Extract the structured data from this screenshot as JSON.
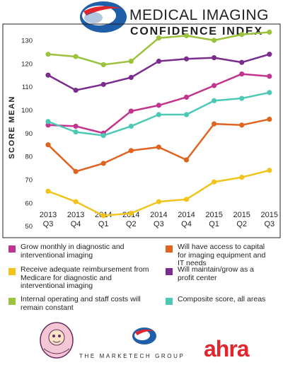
{
  "header": {
    "title_line1": "MEDICAL IMAGING",
    "title_line2": "CONFIDENCE INDEX"
  },
  "chart_data": {
    "type": "line",
    "ylabel": "SCORE MEAN",
    "xlabel": "",
    "ylim": [
      45,
      137
    ],
    "yticks": [
      50,
      60,
      70,
      80,
      90,
      100,
      110,
      120,
      130
    ],
    "grid": false,
    "categories": [
      {
        "year": "2013",
        "quarter": "Q3"
      },
      {
        "year": "2013",
        "quarter": "Q4"
      },
      {
        "year": "2014",
        "quarter": "Q1"
      },
      {
        "year": "2014",
        "quarter": "Q2"
      },
      {
        "year": "2014",
        "quarter": "Q3"
      },
      {
        "year": "2014",
        "quarter": "Q4"
      },
      {
        "year": "2015",
        "quarter": "Q1"
      },
      {
        "year": "2015",
        "quarter": "Q2"
      },
      {
        "year": "2015",
        "quarter": "Q3"
      }
    ],
    "series": [
      {
        "name": "Internal operating and staff costs will remain constant",
        "color": "#9bc23c",
        "values": [
          124,
          123,
          119.5,
          121,
          131,
          132,
          130,
          132.5,
          133.5
        ]
      },
      {
        "name": "Will maintain/grow as a profit center",
        "color": "#7b2d8e",
        "values": [
          115,
          108.5,
          111,
          114,
          121,
          122,
          122.5,
          120.5,
          124
        ]
      },
      {
        "name": "Grow monthly in diagnostic and interventional imaging",
        "color": "#c2358f",
        "values": [
          93.5,
          93,
          90,
          99.5,
          102,
          105.5,
          110.5,
          115.5,
          114.5
        ]
      },
      {
        "name": "Composite score, all areas",
        "color": "#4dc8b4",
        "values": [
          95,
          90.5,
          89,
          93,
          98,
          98,
          104,
          105,
          107.5
        ]
      },
      {
        "name": "Will have access to capital for imaging equipment and IT needs",
        "color": "#de6420",
        "values": [
          85,
          73.5,
          77,
          82.5,
          84,
          78.5,
          94,
          93.5,
          96
        ]
      },
      {
        "name": "Receive adequate reimbursement from Medicare for diagnostic and interventional imaging",
        "color": "#f2c41b",
        "values": [
          65,
          60.5,
          54.5,
          55.5,
          60.5,
          61.5,
          69,
          71,
          74
        ]
      }
    ]
  },
  "legend": [
    {
      "label": "Grow monthly in diagnostic and interventional imaging",
      "color": "#c2358f"
    },
    {
      "label": "Will have access to capital for imaging equipment and IT needs",
      "color": "#de6420"
    },
    {
      "label": "Receive adequate reimbursement from Medicare for diagnostic and interventional imaging",
      "color": "#f2c41b"
    },
    {
      "label": "Will maintain/grow as a profit center",
      "color": "#7b2d8e"
    },
    {
      "label": "Internal operating and staff costs will remain constant",
      "color": "#9bc23c"
    },
    {
      "label": "Composite score, all areas",
      "color": "#4dc8b4"
    }
  ],
  "footer": {
    "marketech": "THE MARKETECH GROUP",
    "ahra": "ahra"
  }
}
